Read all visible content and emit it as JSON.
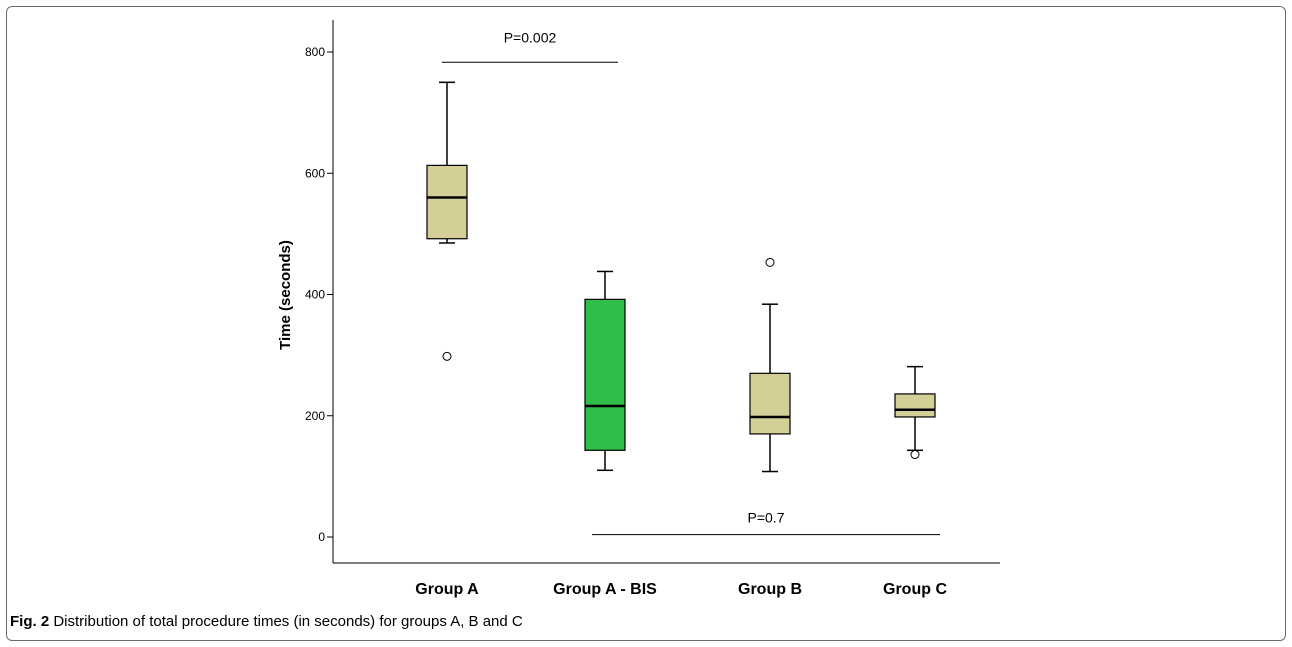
{
  "chart_data": {
    "type": "boxplot",
    "ylabel": "Time (seconds)",
    "xlabel": "",
    "ylim": [
      0,
      800
    ],
    "yticks": [
      0,
      200,
      400,
      600,
      800
    ],
    "categories": [
      "Group A",
      "Group A - BIS",
      "Group B",
      "Group C"
    ],
    "boxes": [
      {
        "category": "Group A",
        "whisker_low": 485,
        "q1": 492,
        "median": 560,
        "q3": 613,
        "whisker_high": 750,
        "outliers": [
          298
        ],
        "color": "#d4cf97"
      },
      {
        "category": "Group A - BIS",
        "whisker_low": 110,
        "q1": 143,
        "median": 216,
        "q3": 392,
        "whisker_high": 438,
        "outliers": [],
        "color": "#2fbe48"
      },
      {
        "category": "Group B",
        "whisker_low": 108,
        "q1": 170,
        "median": 198,
        "q3": 270,
        "whisker_high": 384,
        "outliers": [
          453
        ],
        "color": "#d4cf97"
      },
      {
        "category": "Group C",
        "whisker_low": 143,
        "q1": 198,
        "median": 210,
        "q3": 236,
        "whisker_high": 281,
        "outliers": [
          136
        ],
        "color": "#d4cf97"
      }
    ],
    "annotations": [
      {
        "text": "P=0.002",
        "from": "Group A",
        "to": "Group A - BIS",
        "y": 783
      },
      {
        "text": "P=0.7",
        "from": "Group A - BIS",
        "to": "Group C",
        "y": 4
      }
    ],
    "grid": false,
    "legend": "none"
  },
  "caption": {
    "label": "Fig. 2",
    "text": "Distribution of total procedure times (in seconds) for groups A, B and C"
  }
}
